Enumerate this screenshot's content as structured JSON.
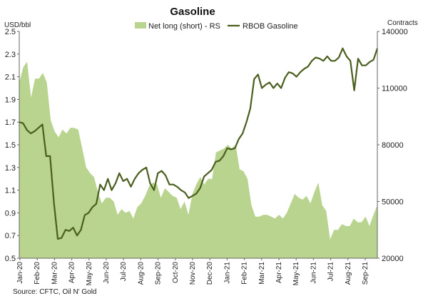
{
  "chart_data": {
    "type": "area+line",
    "title": "Gasoline",
    "left_axis_label": "USD/bbl",
    "right_axis_label": "Contracts",
    "source": "Source: CFTC, Oil N' Gold",
    "left_ylim": [
      0.5,
      2.5
    ],
    "left_yticks": [
      "2.5",
      "2.3",
      "2.1",
      "1.9",
      "1.7",
      "1.5",
      "1.3",
      "1.1",
      "0.9",
      "0.7",
      "0.5"
    ],
    "right_ylim": [
      20000,
      140000
    ],
    "right_yticks": [
      "140000",
      "110000",
      "80000",
      "50000",
      "20000"
    ],
    "x_ticks": [
      "Jan-20",
      "Feb-20",
      "Mar-20",
      "Apr-20",
      "May-20",
      "Jun-20",
      "Jul-20",
      "Aug-20",
      "Sep-20",
      "Oct-20",
      "Nov-20",
      "Dec-20",
      "Jan-21",
      "Feb-21",
      "Mar-21",
      "Apr-21",
      "May-21",
      "Jun-21",
      "Jul-21",
      "Aug-21",
      "Sep-21"
    ],
    "series": [
      {
        "name": "Net long (short) - RS",
        "axis": "right",
        "style": "area",
        "color": "#b9d48f",
        "values": [
          113000,
          121000,
          124000,
          105000,
          115000,
          115000,
          118000,
          113000,
          93000,
          87000,
          84000,
          88000,
          86000,
          89000,
          89000,
          88000,
          78000,
          68000,
          65000,
          63000,
          55000,
          49000,
          52000,
          52000,
          50000,
          43000,
          46000,
          44000,
          45000,
          41000,
          47000,
          49000,
          53000,
          58000,
          60000,
          59000,
          52000,
          57000,
          55000,
          53000,
          52000,
          46000,
          50000,
          43000,
          54000,
          59000,
          63000,
          59000,
          62000,
          62000,
          76000,
          77000,
          78000,
          80000,
          78000,
          80000,
          67000,
          66000,
          62000,
          48000,
          42000,
          42000,
          43000,
          43000,
          42000,
          41000,
          43000,
          41000,
          44000,
          49000,
          54000,
          52000,
          51000,
          53000,
          49000,
          55000,
          60000,
          48000,
          45000,
          30000,
          35000,
          35000,
          38000,
          37000,
          37000,
          41000,
          39000,
          39000,
          42000,
          37000,
          43000,
          48000
        ]
      },
      {
        "name": "RBOB Gasoline",
        "axis": "left",
        "style": "line",
        "color": "#4a5e1e",
        "values": [
          1.7,
          1.69,
          1.63,
          1.6,
          1.62,
          1.65,
          1.68,
          1.4,
          1.4,
          0.99,
          0.67,
          0.68,
          0.75,
          0.74,
          0.77,
          0.7,
          0.75,
          0.88,
          0.9,
          0.95,
          0.98,
          1.15,
          1.1,
          1.2,
          1.1,
          1.16,
          1.25,
          1.18,
          1.2,
          1.13,
          1.2,
          1.25,
          1.28,
          1.3,
          1.16,
          1.1,
          1.25,
          1.27,
          1.23,
          1.15,
          1.15,
          1.13,
          1.1,
          1.08,
          1.03,
          1.05,
          1.07,
          1.12,
          1.22,
          1.25,
          1.28,
          1.35,
          1.36,
          1.4,
          1.47,
          1.46,
          1.47,
          1.55,
          1.6,
          1.7,
          1.82,
          2.08,
          2.12,
          2.0,
          2.03,
          2.05,
          2.0,
          2.04,
          2.0,
          2.09,
          2.14,
          2.13,
          2.1,
          2.14,
          2.17,
          2.19,
          2.24,
          2.27,
          2.26,
          2.24,
          2.28,
          2.24,
          2.24,
          2.27,
          2.35,
          2.28,
          2.24,
          1.98,
          2.26,
          2.2,
          2.2,
          2.23,
          2.25,
          2.35
        ]
      }
    ]
  }
}
